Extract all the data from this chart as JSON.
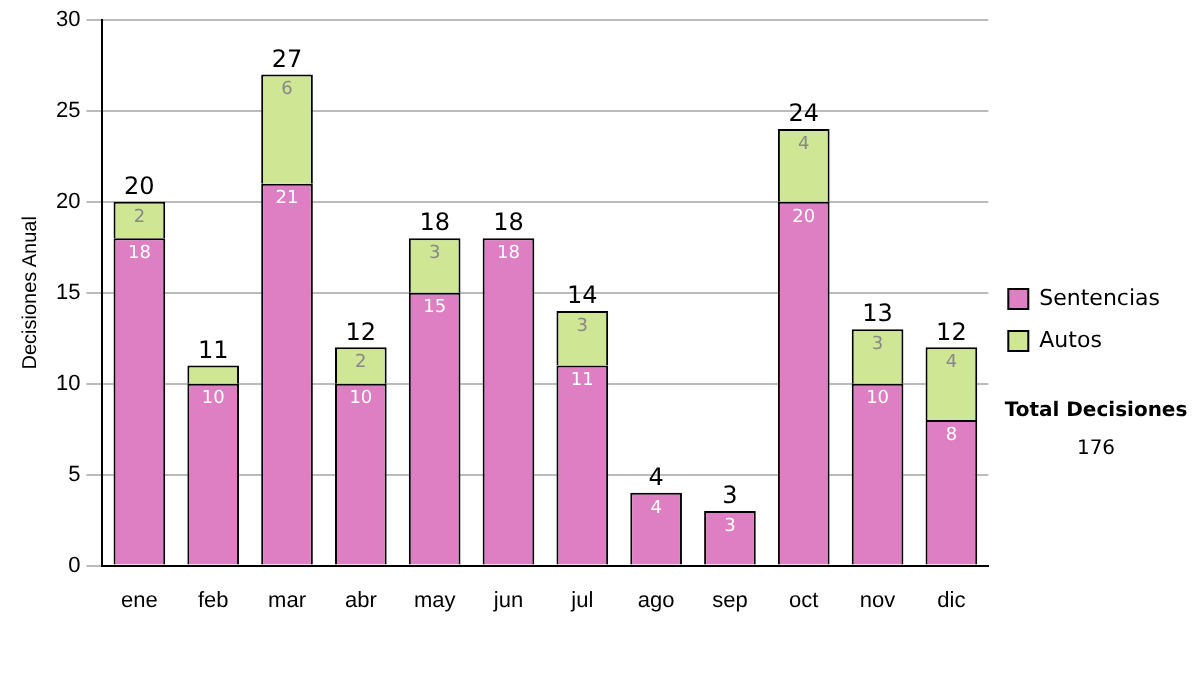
{
  "chart_data": {
    "type": "bar",
    "stacked": true,
    "ylabel": "Decisiones Anual",
    "categories": [
      "ene",
      "feb",
      "mar",
      "abr",
      "may",
      "jun",
      "jul",
      "ago",
      "sep",
      "oct",
      "nov",
      "dic"
    ],
    "series": [
      {
        "name": "Sentencias",
        "color": "#dd7fc2",
        "values": [
          18,
          10,
          21,
          10,
          15,
          18,
          11,
          4,
          3,
          20,
          10,
          8
        ],
        "value_labels": [
          "18",
          "10",
          "21",
          "10",
          "15",
          "18",
          "11",
          "4",
          "3",
          "20",
          "10",
          "8"
        ]
      },
      {
        "name": "Autos",
        "color": "#cfe795",
        "values": [
          2,
          1,
          6,
          2,
          3,
          0,
          3,
          0,
          0,
          4,
          3,
          4
        ],
        "value_labels": [
          "2",
          null,
          "6",
          "2",
          "3",
          null,
          "3",
          null,
          null,
          "4",
          "3",
          "4"
        ]
      }
    ],
    "totals": [
      "20",
      "11",
      "27",
      "12",
      "18",
      "18",
      "14",
      "4",
      "3",
      "24",
      "13",
      "12"
    ],
    "ylim": [
      0,
      30
    ],
    "yticks": [
      0,
      5,
      10,
      15,
      20,
      25,
      30
    ],
    "grid": "y",
    "legend": "right",
    "annotations": [
      "Total Decisiones",
      "176"
    ]
  }
}
